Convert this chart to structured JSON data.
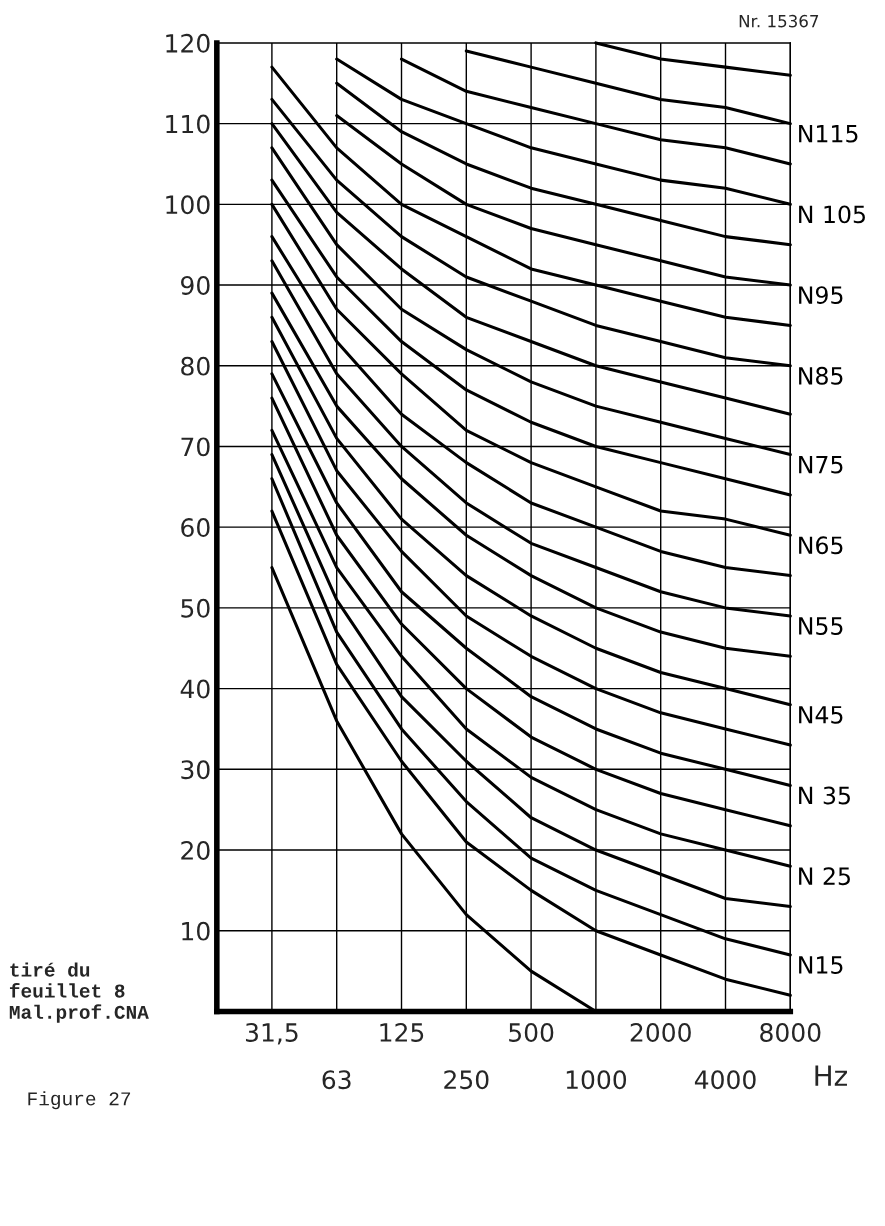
{
  "chart_data": {
    "type": "line",
    "xlabel": "Hz",
    "categories": [
      "31,5",
      "63",
      "125",
      "250",
      "500",
      "1000",
      "2000",
      "4000",
      "8000"
    ],
    "ylim": [
      0,
      120
    ],
    "yticks": [
      10,
      20,
      30,
      40,
      50,
      60,
      70,
      80,
      90,
      100,
      110,
      120
    ],
    "grid": true,
    "legend": false,
    "marker": "none",
    "line_style": "solid",
    "annotations": [
      "Nr. 15367",
      "tiré du\nfeuillet 8\nMal.prof.CNA",
      "Figure 27"
    ],
    "series": [
      {
        "color": "#000000",
        "values": [
          55,
          36,
          22,
          12,
          5,
          0,
          null,
          null,
          null
        ]
      },
      {
        "color": "#000000",
        "values": [
          62,
          43,
          31,
          21,
          15,
          10,
          7,
          4,
          2
        ]
      },
      {
        "name": "N15",
        "color": "#000000",
        "values": [
          66,
          47,
          35,
          26,
          19,
          15,
          12,
          9,
          7
        ]
      },
      {
        "color": "#000000",
        "values": [
          69,
          51,
          39,
          31,
          24,
          20,
          17,
          14,
          13
        ]
      },
      {
        "name": "N 25",
        "color": "#000000",
        "values": [
          72,
          55,
          44,
          35,
          29,
          25,
          22,
          20,
          18
        ]
      },
      {
        "color": "#000000",
        "values": [
          76,
          59,
          48,
          40,
          34,
          30,
          27,
          25,
          23
        ]
      },
      {
        "name": "N 35",
        "color": "#000000",
        "values": [
          79,
          63,
          52,
          45,
          39,
          35,
          32,
          30,
          28
        ]
      },
      {
        "color": "#000000",
        "values": [
          83,
          67,
          57,
          49,
          44,
          40,
          37,
          35,
          33
        ]
      },
      {
        "name": "N45",
        "color": "#000000",
        "values": [
          86,
          71,
          61,
          54,
          49,
          45,
          42,
          40,
          38
        ]
      },
      {
        "color": "#000000",
        "values": [
          89,
          75,
          66,
          59,
          54,
          50,
          47,
          45,
          44
        ]
      },
      {
        "name": "N55",
        "color": "#000000",
        "values": [
          93,
          79,
          70,
          63,
          58,
          55,
          52,
          50,
          49
        ]
      },
      {
        "color": "#000000",
        "values": [
          96,
          83,
          74,
          68,
          63,
          60,
          57,
          55,
          54
        ]
      },
      {
        "name": "N65",
        "color": "#000000",
        "values": [
          100,
          87,
          79,
          72,
          68,
          65,
          62,
          61,
          59
        ]
      },
      {
        "color": "#000000",
        "values": [
          103,
          91,
          83,
          77,
          73,
          70,
          68,
          66,
          64
        ]
      },
      {
        "name": "N75",
        "color": "#000000",
        "values": [
          107,
          95,
          87,
          82,
          78,
          75,
          73,
          71,
          69
        ]
      },
      {
        "color": "#000000",
        "values": [
          110,
          99,
          92,
          86,
          83,
          80,
          78,
          76,
          74
        ]
      },
      {
        "name": "N85",
        "color": "#000000",
        "values": [
          113,
          103,
          96,
          91,
          88,
          85,
          83,
          81,
          80
        ]
      },
      {
        "color": "#000000",
        "values": [
          117,
          107,
          100,
          96,
          92,
          90,
          88,
          86,
          85
        ]
      },
      {
        "name": "N95",
        "color": "#000000",
        "values": [
          null,
          111,
          105,
          100,
          97,
          95,
          93,
          91,
          90
        ]
      },
      {
        "color": "#000000",
        "values": [
          null,
          115,
          109,
          105,
          102,
          100,
          98,
          96,
          95
        ]
      },
      {
        "name": "N 105",
        "color": "#000000",
        "values": [
          null,
          118,
          113,
          110,
          107,
          105,
          103,
          102,
          100
        ]
      },
      {
        "color": "#000000",
        "values": [
          null,
          null,
          118,
          114,
          112,
          110,
          108,
          107,
          105
        ]
      },
      {
        "name": "N115",
        "color": "#000000",
        "values": [
          null,
          null,
          null,
          119,
          117,
          115,
          113,
          112,
          110
        ]
      },
      {
        "color": "#000000",
        "values": [
          null,
          null,
          null,
          null,
          null,
          120,
          118,
          117,
          116
        ]
      }
    ]
  }
}
